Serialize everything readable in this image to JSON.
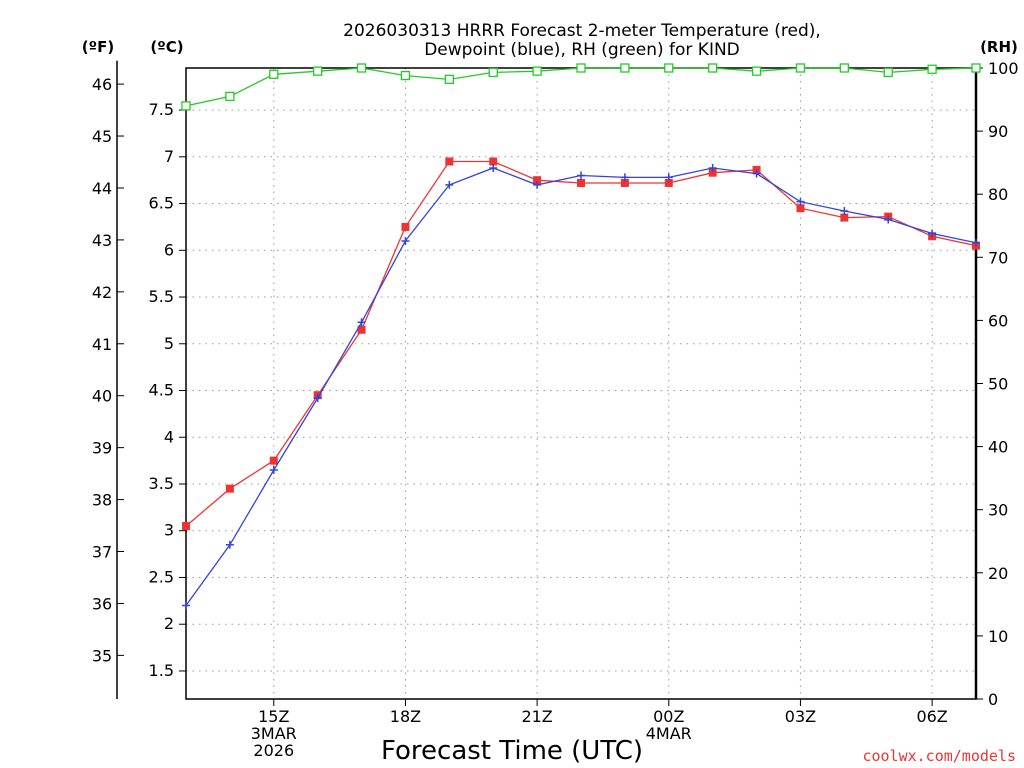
{
  "chart_data": {
    "type": "line",
    "title_line1": "2026030313 HRRR Forecast 2-meter Temperature (red),",
    "title_line2": "Dewpoint (blue), RH (green) for KIND",
    "xlabel": "Forecast Time (UTC)",
    "credit": "coolwx.com/models",
    "unit_labels": {
      "fahrenheit": "(ºF)",
      "celsius": "(ºC)",
      "rh": "(RH)"
    },
    "x_hours": [
      13,
      14,
      15,
      16,
      17,
      18,
      19,
      20,
      21,
      22,
      23,
      24,
      25,
      26,
      27,
      28,
      29,
      30,
      31
    ],
    "x_ticks": [
      {
        "hour": 15,
        "lines": [
          "15Z",
          "3MAR",
          "2026"
        ]
      },
      {
        "hour": 18,
        "lines": [
          "18Z"
        ]
      },
      {
        "hour": 21,
        "lines": [
          "21Z"
        ]
      },
      {
        "hour": 24,
        "lines": [
          "00Z",
          "4MAR"
        ]
      },
      {
        "hour": 27,
        "lines": [
          "03Z"
        ]
      },
      {
        "hour": 30,
        "lines": [
          "06Z"
        ]
      }
    ],
    "celsius_axis": {
      "range": [
        1.2,
        7.95
      ],
      "ticks": [
        "1.5",
        "2",
        "2.5",
        "3",
        "3.5",
        "4",
        "4.5",
        "5",
        "5.5",
        "6",
        "6.5",
        "7",
        "7.5"
      ]
    },
    "fahrenheit_axis": {
      "ticks": [
        "35",
        "36",
        "37",
        "38",
        "39",
        "40",
        "41",
        "42",
        "43",
        "44",
        "45",
        "46"
      ]
    },
    "rh_axis": {
      "range": [
        0,
        100
      ],
      "ticks": [
        "0",
        "10",
        "20",
        "30",
        "40",
        "50",
        "60",
        "70",
        "80",
        "90",
        "100"
      ]
    },
    "series": [
      {
        "name": "Temperature",
        "color": "#ee3333",
        "marker": "filled-square",
        "axis": "celsius",
        "values": [
          3.05,
          3.45,
          3.75,
          4.45,
          5.15,
          6.25,
          6.95,
          6.95,
          6.75,
          6.72,
          6.72,
          6.72,
          6.83,
          6.86,
          6.45,
          6.35,
          6.36,
          6.15,
          6.05
        ]
      },
      {
        "name": "Dewpoint",
        "color": "#3344dd",
        "marker": "plus",
        "axis": "celsius",
        "values": [
          2.2,
          2.85,
          3.65,
          4.42,
          5.23,
          6.1,
          6.7,
          6.88,
          6.7,
          6.8,
          6.78,
          6.78,
          6.88,
          6.82,
          6.52,
          6.42,
          6.33,
          6.18,
          6.08
        ]
      },
      {
        "name": "RH",
        "color": "#22cc22",
        "marker": "open-square",
        "axis": "rh",
        "values": [
          94,
          95.5,
          99,
          99.5,
          100,
          98.8,
          98.2,
          99.3,
          99.5,
          100,
          100,
          100,
          100,
          99.5,
          100,
          100,
          99.3,
          99.8,
          100
        ]
      }
    ]
  }
}
